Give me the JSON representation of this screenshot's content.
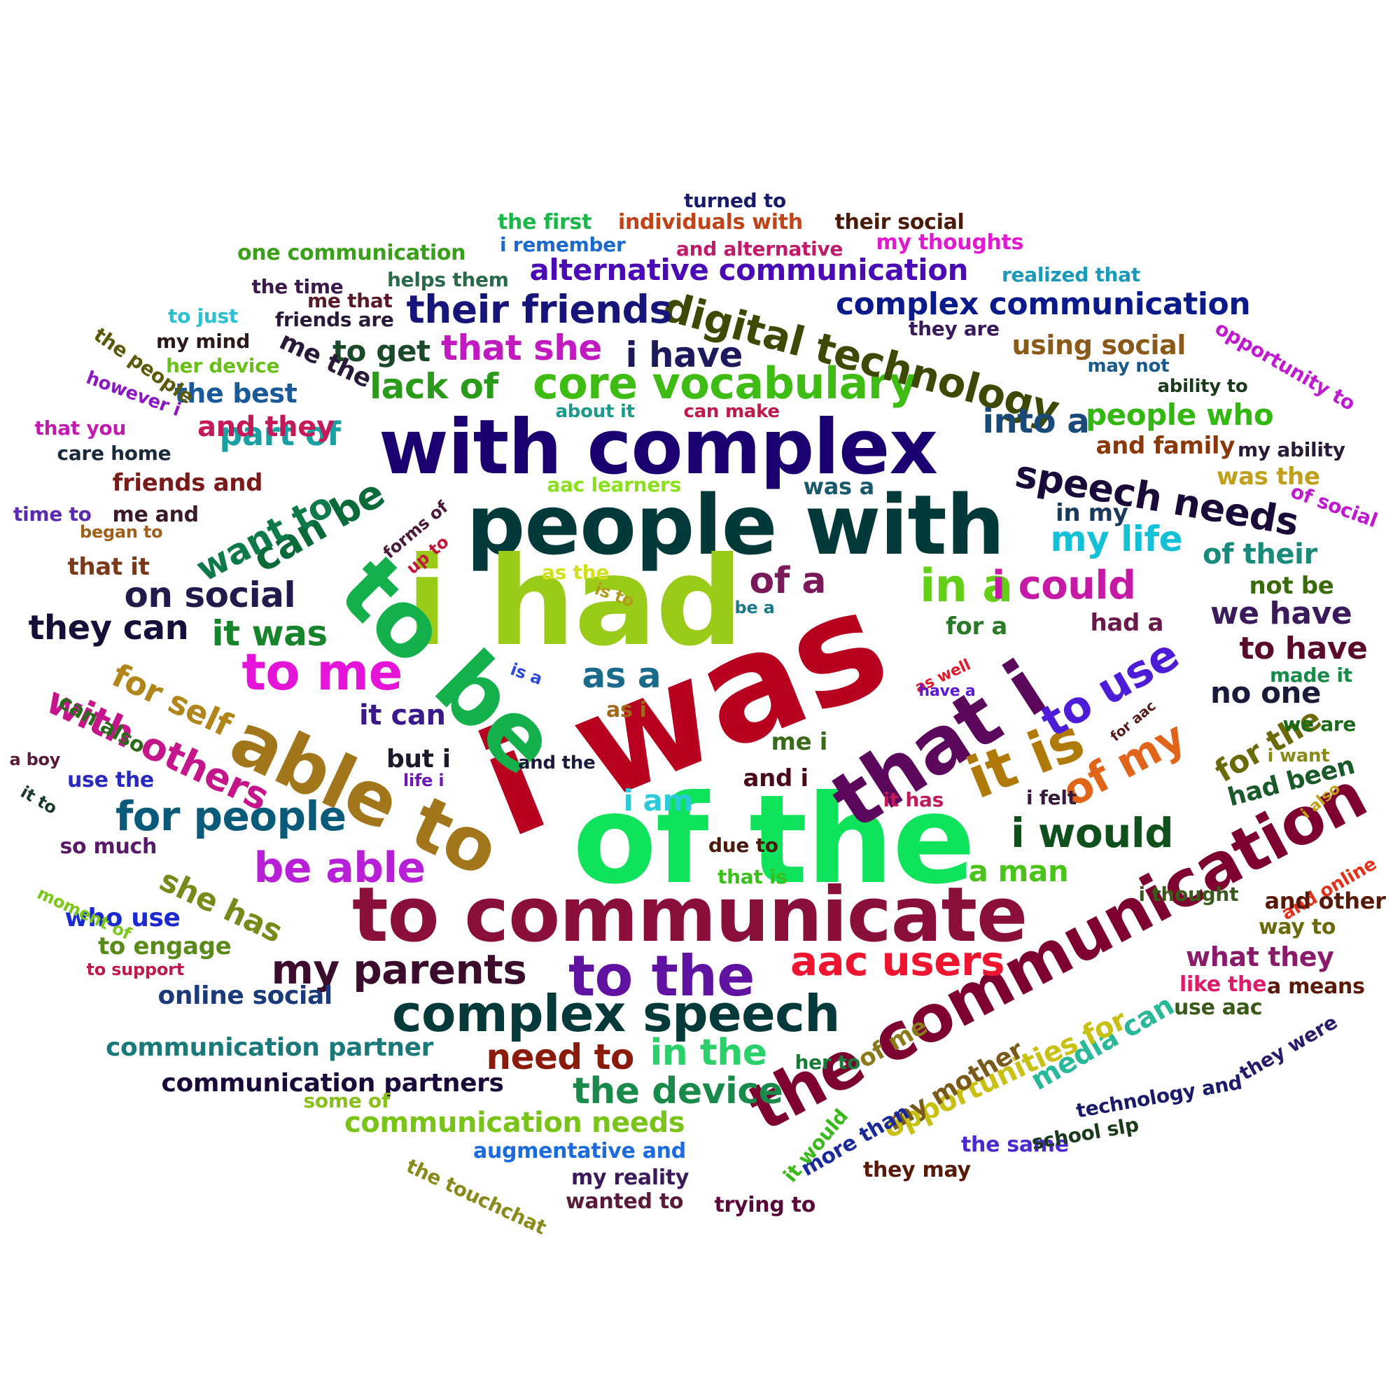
{
  "words": [
    {
      "text": "i was",
      "color": "#b8001f"
    },
    {
      "text": "of the",
      "color": "#0fe35c"
    },
    {
      "text": "to communicate",
      "color": "#8a0f3a"
    },
    {
      "text": "people with",
      "color": "#04393a"
    },
    {
      "text": "i had",
      "color": "#9acb18"
    },
    {
      "text": "with complex",
      "color": "#1a0070"
    },
    {
      "text": "the communication",
      "color": "#7d0030"
    },
    {
      "text": "to be",
      "color": "#14b04c"
    },
    {
      "text": "that i",
      "color": "#5b075c"
    },
    {
      "text": "able to",
      "color": "#a2761a"
    },
    {
      "text": "complex speech",
      "color": "#063a3a"
    },
    {
      "text": "to the",
      "color": "#6012a0"
    },
    {
      "text": "it is",
      "color": "#b07a0a"
    },
    {
      "text": "core vocabulary",
      "color": "#3ebc14"
    },
    {
      "text": "digital technology",
      "color": "#3d4a05"
    },
    {
      "text": "my parents",
      "color": "#3b0c2c"
    },
    {
      "text": "to me",
      "color": "#e414d8"
    },
    {
      "text": "aac users",
      "color": "#ee1530"
    },
    {
      "text": "speech needs",
      "color": "#1a0a3a"
    },
    {
      "text": "i would",
      "color": "#10501c"
    },
    {
      "text": "be able",
      "color": "#b820d8"
    },
    {
      "text": "in a",
      "color": "#63cf17"
    },
    {
      "text": "i could",
      "color": "#c61aa6"
    },
    {
      "text": "to use",
      "color": "#4d1cd6"
    },
    {
      "text": "of my",
      "color": "#e0641a"
    },
    {
      "text": "for people",
      "color": "#0a5a7a"
    },
    {
      "text": "with others",
      "color": "#c4168a"
    },
    {
      "text": "can be",
      "color": "#0b6a3a"
    },
    {
      "text": "want to",
      "color": "#0e7a4a"
    },
    {
      "text": "their friends",
      "color": "#18157a"
    },
    {
      "text": "on social",
      "color": "#221a4a"
    },
    {
      "text": "my life",
      "color": "#14c0d6"
    },
    {
      "text": "that she",
      "color": "#c01ac0"
    },
    {
      "text": "i have",
      "color": "#1c1a5a"
    },
    {
      "text": "complex communication",
      "color": "#0a1a8a"
    },
    {
      "text": "alternative communication",
      "color": "#4a0ab4"
    },
    {
      "text": "it was",
      "color": "#17832a"
    },
    {
      "text": "they can",
      "color": "#14103a"
    },
    {
      "text": "lack of",
      "color": "#2a9a1a"
    },
    {
      "text": "part of",
      "color": "#1aa0a0"
    },
    {
      "text": "into a",
      "color": "#1a4a7a"
    },
    {
      "text": "people who",
      "color": "#33b812"
    },
    {
      "text": "for self",
      "color": "#b0861a"
    },
    {
      "text": "as a",
      "color": "#1a6a8a"
    },
    {
      "text": "of a",
      "color": "#7a1a5a"
    },
    {
      "text": "the device",
      "color": "#1a8a4a"
    },
    {
      "text": "in the",
      "color": "#2ad06a"
    },
    {
      "text": "need to",
      "color": "#8a1a0a"
    },
    {
      "text": "we have",
      "color": "#3a1a5a"
    },
    {
      "text": "to have",
      "color": "#5a0a2a"
    },
    {
      "text": "for the",
      "color": "#6a6a0a"
    },
    {
      "text": "media can",
      "color": "#2ab89a"
    },
    {
      "text": "opportunities for",
      "color": "#c8c012"
    },
    {
      "text": "communication needs",
      "color": "#7ac41a"
    },
    {
      "text": "communication partner",
      "color": "#1a7a7a"
    },
    {
      "text": "communication partners",
      "color": "#1a0a3a"
    },
    {
      "text": "online social",
      "color": "#1a3a7a"
    },
    {
      "text": "she has",
      "color": "#7a8a1a"
    },
    {
      "text": "to get",
      "color": "#1a4a2a"
    },
    {
      "text": "had been",
      "color": "#1a5a2a"
    },
    {
      "text": "using social",
      "color": "#8a5a1a"
    },
    {
      "text": "what they",
      "color": "#8a1a6a"
    },
    {
      "text": "a man",
      "color": "#4ac41a"
    },
    {
      "text": "it can",
      "color": "#3a1a8a"
    },
    {
      "text": "no one",
      "color": "#1a1a3a"
    },
    {
      "text": "i am",
      "color": "#2acad8"
    },
    {
      "text": "of their",
      "color": "#1a8a7a"
    },
    {
      "text": "and they",
      "color": "#c41a5a"
    },
    {
      "text": "the best",
      "color": "#1a5a9a"
    },
    {
      "text": "my mother",
      "color": "#7a5a1a"
    },
    {
      "text": "of me",
      "color": "#8a7a1a"
    },
    {
      "text": "augmentative and",
      "color": "#1a6ae0"
    },
    {
      "text": "and family",
      "color": "#8a3a0a"
    },
    {
      "text": "was the",
      "color": "#c0a01a"
    },
    {
      "text": "who use",
      "color": "#1a2ad0"
    },
    {
      "text": "friends and",
      "color": "#7a1a1a"
    },
    {
      "text": "to engage",
      "color": "#5a8a1a"
    },
    {
      "text": "me the",
      "color": "#2a1a3a"
    },
    {
      "text": "but i",
      "color": "#1a1a2a"
    },
    {
      "text": "and i",
      "color": "#4a0a1a"
    },
    {
      "text": "me i",
      "color": "#3a6a1a"
    },
    {
      "text": "in my",
      "color": "#1a3a5a"
    },
    {
      "text": "not be",
      "color": "#3a6a0a"
    },
    {
      "text": "had a",
      "color": "#6a1a4a"
    },
    {
      "text": "for a",
      "color": "#2a7a2a"
    },
    {
      "text": "was a",
      "color": "#1a5a6a"
    },
    {
      "text": "can also",
      "color": "#2a6a1a"
    },
    {
      "text": "that it",
      "color": "#7a3a1a"
    },
    {
      "text": "use the",
      "color": "#2a2ac0"
    },
    {
      "text": "so much",
      "color": "#5a1a6a"
    },
    {
      "text": "as i",
      "color": "#a06a1a"
    },
    {
      "text": "me and",
      "color": "#3a1a2a"
    },
    {
      "text": "the same",
      "color": "#4a2ad0"
    },
    {
      "text": "my reality",
      "color": "#3a1a5a"
    },
    {
      "text": "wanted to",
      "color": "#5a1a3a"
    },
    {
      "text": "trying to",
      "color": "#5a0a3a"
    },
    {
      "text": "they may",
      "color": "#5a1a0a"
    },
    {
      "text": "more than",
      "color": "#1a2a9a"
    },
    {
      "text": "school slp",
      "color": "#1a3a1a"
    },
    {
      "text": "technology and",
      "color": "#1a1a6a"
    },
    {
      "text": "they were",
      "color": "#2a1a6a"
    },
    {
      "text": "the touchchat",
      "color": "#8a8a1a"
    },
    {
      "text": "it would",
      "color": "#3ab81a"
    },
    {
      "text": "some of",
      "color": "#8ac01a"
    },
    {
      "text": "her to",
      "color": "#1a7a3a"
    },
    {
      "text": "turned to",
      "color": "#1a1a6a"
    },
    {
      "text": "the first",
      "color": "#1ab84a"
    },
    {
      "text": "individuals with",
      "color": "#c0441a"
    },
    {
      "text": "their social",
      "color": "#4a1a0a"
    },
    {
      "text": "one communication",
      "color": "#3aa01a"
    },
    {
      "text": "i remember",
      "color": "#1a6ad0"
    },
    {
      "text": "and alternative",
      "color": "#c01a6a"
    },
    {
      "text": "my thoughts",
      "color": "#e01ad0"
    },
    {
      "text": "realized that",
      "color": "#1a9ab8"
    },
    {
      "text": "helps them",
      "color": "#2a6a4a"
    },
    {
      "text": "the time",
      "color": "#3a1a4a"
    },
    {
      "text": "me that",
      "color": "#5a1a2a"
    },
    {
      "text": "friends are",
      "color": "#2a1a3a"
    },
    {
      "text": "to just",
      "color": "#2ac0d0"
    },
    {
      "text": "they are",
      "color": "#3a1a5a"
    },
    {
      "text": "opportunity to",
      "color": "#c01ad0"
    },
    {
      "text": "may not",
      "color": "#1a5a8a"
    },
    {
      "text": "ability to",
      "color": "#1a3a1a"
    },
    {
      "text": "my mind",
      "color": "#2a1a1a"
    },
    {
      "text": "her device",
      "color": "#6ac01a"
    },
    {
      "text": "the people",
      "color": "#5a5a0a"
    },
    {
      "text": "however i",
      "color": "#8a1ac0"
    },
    {
      "text": "that you",
      "color": "#c01ab0"
    },
    {
      "text": "about it",
      "color": "#1a9a8a"
    },
    {
      "text": "can make",
      "color": "#c01a4a"
    },
    {
      "text": "care home",
      "color": "#1a2a3a"
    },
    {
      "text": "my ability",
      "color": "#2a1a3a"
    },
    {
      "text": "aac learners",
      "color": "#8ae01a"
    },
    {
      "text": "forms of",
      "color": "#4a1a3a"
    },
    {
      "text": "up to",
      "color": "#c01a3a"
    },
    {
      "text": "time to",
      "color": "#5a2ab0"
    },
    {
      "text": "began to",
      "color": "#a0601a"
    },
    {
      "text": "of social",
      "color": "#c01ad0"
    },
    {
      "text": "as the",
      "color": "#d0e01a"
    },
    {
      "text": "is to",
      "color": "#b09a1a"
    },
    {
      "text": "be a",
      "color": "#1a7a8a"
    },
    {
      "text": "made it",
      "color": "#1a8a4a"
    },
    {
      "text": "is a",
      "color": "#2a4ae0"
    },
    {
      "text": "as well",
      "color": "#e01a2a"
    },
    {
      "text": "have a",
      "color": "#5a1ad0"
    },
    {
      "text": "for aac",
      "color": "#5a1a1a"
    },
    {
      "text": "we are",
      "color": "#1a6a1a"
    },
    {
      "text": "i want",
      "color": "#8a8a1a"
    },
    {
      "text": "a boy",
      "color": "#5a1a3a"
    },
    {
      "text": "it to",
      "color": "#1a3a2a"
    },
    {
      "text": "and the",
      "color": "#1a1a3a"
    },
    {
      "text": "life i",
      "color": "#6a1ab0"
    },
    {
      "text": "it has",
      "color": "#c01a5a"
    },
    {
      "text": "i felt",
      "color": "#3a1a3a"
    },
    {
      "text": "i also",
      "color": "#c0a01a"
    },
    {
      "text": "due to",
      "color": "#4a1a0a"
    },
    {
      "text": "that is",
      "color": "#3ac01a"
    },
    {
      "text": "i thought",
      "color": "#3a5a1a"
    },
    {
      "text": "and online",
      "color": "#e0321a"
    },
    {
      "text": "and other",
      "color": "#5a1a0a"
    },
    {
      "text": "way to",
      "color": "#6a6a0a"
    },
    {
      "text": "like the",
      "color": "#e01a6a"
    },
    {
      "text": "a means",
      "color": "#5a1a0a"
    },
    {
      "text": "use aac",
      "color": "#3a5a1a"
    },
    {
      "text": "moment of",
      "color": "#7ac81a"
    },
    {
      "text": "to support",
      "color": "#c01a4a"
    }
  ]
}
